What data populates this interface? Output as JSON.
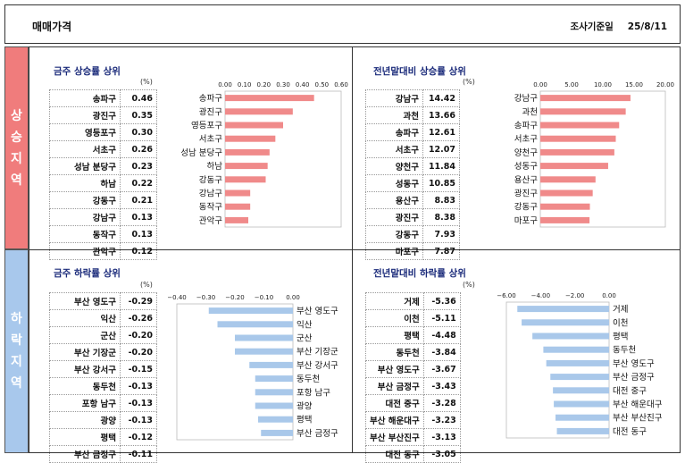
{
  "header": {
    "title": "매매가격",
    "survey_label": "조사기준일",
    "survey_date": "25/8/11"
  },
  "side": {
    "up": "상승지역",
    "down": "하락지역"
  },
  "panels": [
    {
      "title": "금주 상승률 상위",
      "unit": "(%)",
      "rows": [
        [
          "송파구",
          "0.46"
        ],
        [
          "광진구",
          "0.35"
        ],
        [
          "영등포구",
          "0.30"
        ],
        [
          "서초구",
          "0.26"
        ],
        [
          "성남 분당구",
          "0.23"
        ],
        [
          "하남",
          "0.22"
        ],
        [
          "강동구",
          "0.21"
        ],
        [
          "강남구",
          "0.13"
        ],
        [
          "동작구",
          "0.13"
        ],
        [
          "관악구",
          "0.12"
        ]
      ]
    },
    {
      "title": "전년말대비 상승률 상위",
      "unit": "(%)",
      "rows": [
        [
          "강남구",
          "14.42"
        ],
        [
          "과천",
          "13.66"
        ],
        [
          "송파구",
          "12.61"
        ],
        [
          "서초구",
          "12.07"
        ],
        [
          "양천구",
          "11.84"
        ],
        [
          "성동구",
          "10.85"
        ],
        [
          "용산구",
          "8.83"
        ],
        [
          "광진구",
          "8.38"
        ],
        [
          "강동구",
          "7.93"
        ],
        [
          "마포구",
          "7.87"
        ]
      ]
    },
    {
      "title": "금주 하락률 상위",
      "unit": "(%)",
      "rows": [
        [
          "부산 영도구",
          "-0.29"
        ],
        [
          "익산",
          "-0.26"
        ],
        [
          "군산",
          "-0.20"
        ],
        [
          "부산 기장군",
          "-0.20"
        ],
        [
          "부산 강서구",
          "-0.15"
        ],
        [
          "동두천",
          "-0.13"
        ],
        [
          "포항 남구",
          "-0.13"
        ],
        [
          "광양",
          "-0.13"
        ],
        [
          "평택",
          "-0.12"
        ],
        [
          "부산 금정구",
          "-0.11"
        ]
      ]
    },
    {
      "title": "전년말대비 하락률 상위",
      "unit": "(%)",
      "rows": [
        [
          "거제",
          "-5.36"
        ],
        [
          "이천",
          "-5.11"
        ],
        [
          "평택",
          "-4.48"
        ],
        [
          "동두천",
          "-3.84"
        ],
        [
          "부산 영도구",
          "-3.67"
        ],
        [
          "부산 금정구",
          "-3.43"
        ],
        [
          "대전 중구",
          "-3.28"
        ],
        [
          "부산 해운대구",
          "-3.23"
        ],
        [
          "부산 부산진구",
          "-3.13"
        ],
        [
          "대전 동구",
          "-3.05"
        ]
      ]
    }
  ],
  "chart_data": [
    {
      "type": "bar",
      "orientation": "horizontal",
      "categories": [
        "송파구",
        "광진구",
        "영등포구",
        "서초구",
        "성남 분당구",
        "하남",
        "강동구",
        "강남구",
        "동작구",
        "관악구"
      ],
      "values": [
        0.46,
        0.35,
        0.3,
        0.26,
        0.23,
        0.22,
        0.21,
        0.13,
        0.13,
        0.12
      ],
      "xlim": [
        0,
        0.6
      ],
      "ticks": [
        "0.00",
        "0.10",
        "0.20",
        "0.30",
        "0.40",
        "0.50",
        "0.60"
      ],
      "color": "#f08a8a"
    },
    {
      "type": "bar",
      "orientation": "horizontal",
      "categories": [
        "강남구",
        "과천",
        "송파구",
        "서초구",
        "양천구",
        "성동구",
        "용산구",
        "광진구",
        "강동구",
        "마포구"
      ],
      "values": [
        14.42,
        13.66,
        12.61,
        12.07,
        11.84,
        10.85,
        8.83,
        8.38,
        7.93,
        7.87
      ],
      "xlim": [
        0,
        20
      ],
      "ticks": [
        "0.00",
        "5.00",
        "10.00",
        "15.00",
        "20.00"
      ],
      "color": "#f08a8a"
    },
    {
      "type": "bar",
      "orientation": "horizontal",
      "categories": [
        "부산 영도구",
        "익산",
        "군산",
        "부산 기장군",
        "부산 강서구",
        "동두천",
        "포항 남구",
        "광양",
        "평택",
        "부산 금정구"
      ],
      "values": [
        -0.29,
        -0.26,
        -0.2,
        -0.2,
        -0.15,
        -0.13,
        -0.13,
        -0.13,
        -0.12,
        -0.11
      ],
      "xlim": [
        -0.4,
        0
      ],
      "ticks": [
        "−0.40",
        "−0.30",
        "−0.20",
        "−0.10",
        "0.00"
      ],
      "color": "#a9c8ea"
    },
    {
      "type": "bar",
      "orientation": "horizontal",
      "categories": [
        "거제",
        "이천",
        "평택",
        "동두천",
        "부산 영도구",
        "부산 금정구",
        "대전 중구",
        "부산 해운대구",
        "부산 부산진구",
        "대전 동구"
      ],
      "values": [
        -5.36,
        -5.11,
        -4.48,
        -3.84,
        -3.67,
        -3.43,
        -3.28,
        -3.23,
        -3.13,
        -3.05
      ],
      "xlim": [
        -6,
        0
      ],
      "ticks": [
        "−6.00",
        "−4.00",
        "−2.00",
        "0.00"
      ],
      "color": "#a9c8ea"
    }
  ]
}
